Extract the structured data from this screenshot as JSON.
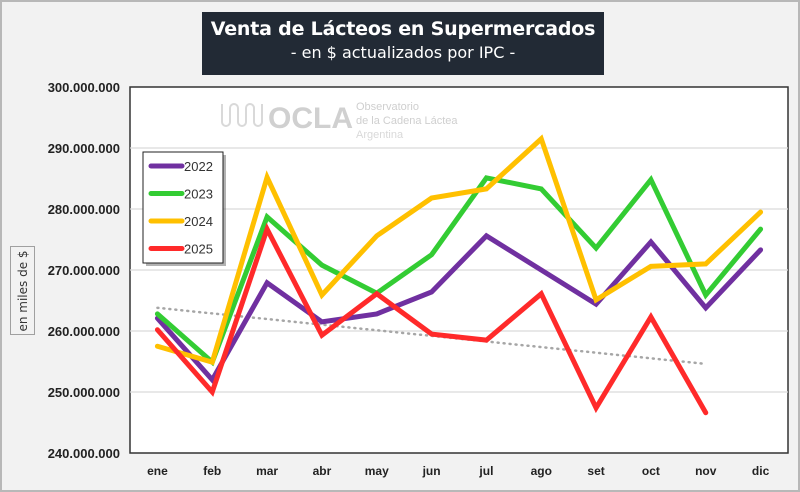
{
  "title": {
    "main": "Venta de Lácteos en Supermercados",
    "subtitle": "- en $ actualizados por IPC -"
  },
  "watermark": {
    "brand": "OCLA",
    "line1": "Observatorio",
    "line2": "de la Cadena Láctea",
    "line3": "Argentina"
  },
  "colors": {
    "2022": "#7030a0",
    "2023": "#33cc33",
    "2024": "#ffc000",
    "2025": "#ff2a2a",
    "trend": "#a6a6a6",
    "title_bg": "#222a35"
  },
  "chart_data": {
    "type": "line",
    "title": "Venta de Lácteos en Supermercados",
    "subtitle": "- en $ actualizados por IPC -",
    "xlabel": "",
    "ylabel": "en miles de $",
    "categories": [
      "ene",
      "feb",
      "mar",
      "abr",
      "may",
      "jun",
      "jul",
      "ago",
      "set",
      "oct",
      "nov",
      "dic"
    ],
    "ylim": [
      240000000,
      300000000
    ],
    "yticks": [
      240000000,
      250000000,
      260000000,
      270000000,
      280000000,
      290000000,
      300000000
    ],
    "ytick_labels": [
      "240.000.000",
      "250.000.000",
      "260.000.000",
      "270.000.000",
      "280.000.000",
      "290.000.000",
      "300.000.000"
    ],
    "grid": true,
    "legend_position": "top-left",
    "series": [
      {
        "name": "2022",
        "values": [
          262100000,
          252000000,
          267900000,
          261500000,
          262800000,
          266400000,
          275600000,
          270000000,
          264400000,
          274600000,
          263800000,
          273300000
        ]
      },
      {
        "name": "2023",
        "values": [
          262800000,
          254900000,
          278700000,
          270800000,
          266200000,
          272500000,
          285100000,
          283300000,
          273600000,
          284800000,
          265900000,
          276700000
        ]
      },
      {
        "name": "2024",
        "values": [
          257500000,
          254900000,
          285200000,
          265900000,
          275600000,
          281800000,
          283300000,
          291500000,
          265100000,
          270600000,
          271000000,
          279500000
        ]
      },
      {
        "name": "2025",
        "values": [
          260200000,
          250000000,
          276700000,
          259300000,
          266100000,
          259500000,
          258500000,
          266100000,
          247400000,
          262300000,
          246600000,
          null
        ]
      }
    ],
    "trendline": {
      "series": "2025",
      "style": "dotted",
      "start": {
        "category": "ene",
        "value": 263800000
      },
      "end": {
        "category": "nov",
        "value": 254600000
      }
    }
  }
}
